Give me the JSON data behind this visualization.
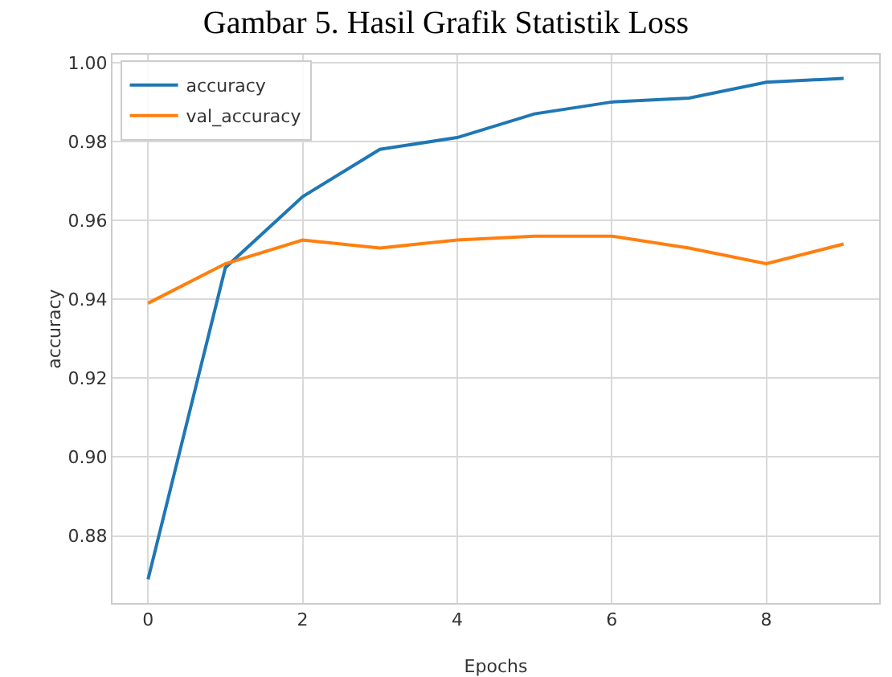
{
  "chart_data": {
    "type": "line",
    "title": "Gambar 5. Hasil Grafik Statistik Loss",
    "xlabel": "Epochs",
    "ylabel": "accuracy",
    "x": [
      0,
      1,
      2,
      3,
      4,
      5,
      6,
      7,
      8,
      9
    ],
    "series": [
      {
        "name": "accuracy",
        "color": "#1f77b4",
        "values": [
          0.869,
          0.948,
          0.966,
          0.978,
          0.981,
          0.987,
          0.99,
          0.991,
          0.995,
          0.996
        ]
      },
      {
        "name": "val_accuracy",
        "color": "#ff7f0e",
        "values": [
          0.939,
          0.949,
          0.955,
          0.953,
          0.955,
          0.956,
          0.956,
          0.953,
          0.949,
          0.954
        ]
      }
    ],
    "xlim": [
      -0.46,
      9.46
    ],
    "xticks": [
      0,
      2,
      4,
      6,
      8
    ],
    "ylim": [
      0.863,
      1.002
    ],
    "yticks": [
      0.88,
      {
        "value": 0.9,
        "label": "0.90"
      },
      0.92,
      0.94,
      0.96,
      0.98,
      {
        "value": 1.0,
        "label": "1.00"
      }
    ],
    "grid": true,
    "legend": "top left",
    "marker": "none",
    "line_style": "solid"
  }
}
